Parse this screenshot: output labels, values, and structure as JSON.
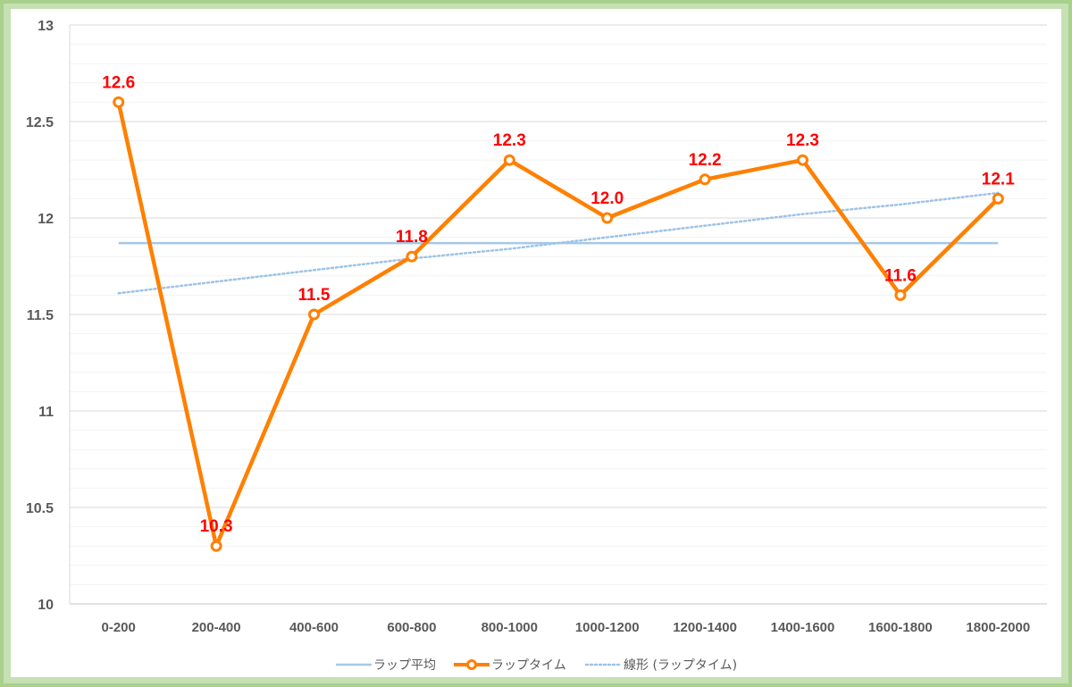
{
  "chart_data": {
    "type": "line",
    "categories": [
      "0-200",
      "200-400",
      "400-600",
      "600-800",
      "800-1000",
      "1000-1200",
      "1200-1400",
      "1400-1600",
      "1600-1800",
      "1800-2000"
    ],
    "series": [
      {
        "name": "ラップタイム",
        "values": [
          12.6,
          10.3,
          11.5,
          11.8,
          12.3,
          12.0,
          12.2,
          12.3,
          11.6,
          12.1
        ],
        "data_labels": [
          "12.6",
          "10.3",
          "11.5",
          "11.8",
          "12.3",
          "12.0",
          "12.2",
          "12.3",
          "11.6",
          "12.1"
        ],
        "color": "#ff8000",
        "marker": "circle-hollow"
      },
      {
        "name": "ラップ平均",
        "values": [
          11.87,
          11.87,
          11.87,
          11.87,
          11.87,
          11.87,
          11.87,
          11.87,
          11.87,
          11.87
        ],
        "color": "#a6c8e8",
        "style": "solid"
      },
      {
        "name": "線形 (ラップタイム)",
        "values": [
          11.61,
          11.67,
          11.73,
          11.79,
          11.84,
          11.9,
          11.96,
          12.02,
          12.07,
          12.13
        ],
        "color": "#9dc3e6",
        "style": "dotted"
      }
    ],
    "y_ticks": [
      "10",
      "10.5",
      "11",
      "11.5",
      "12",
      "12.5",
      "13"
    ],
    "ylim": [
      10,
      13
    ],
    "grid": true,
    "legend_position": "bottom"
  }
}
